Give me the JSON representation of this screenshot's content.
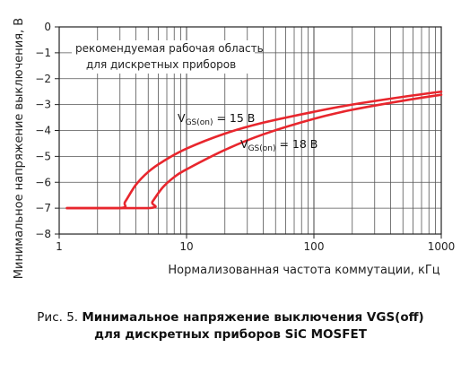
{
  "chart_data": {
    "type": "line",
    "x_scale": "log",
    "xlim": [
      1,
      1000
    ],
    "ylim": [
      -8,
      0
    ],
    "x_ticks": [
      {
        "value": 1,
        "label": "1"
      },
      {
        "value": 10,
        "label": "10"
      },
      {
        "value": 100,
        "label": "100"
      },
      {
        "value": 1000,
        "label": "1000"
      }
    ],
    "y_ticks": [
      {
        "value": 0,
        "label": "0"
      },
      {
        "value": -1,
        "label": "−1"
      },
      {
        "value": -2,
        "label": "−2"
      },
      {
        "value": -3,
        "label": "−3"
      },
      {
        "value": -4,
        "label": "−4"
      },
      {
        "value": -5,
        "label": "−5"
      },
      {
        "value": -6,
        "label": "−6"
      },
      {
        "value": -7,
        "label": "−7"
      },
      {
        "value": -8,
        "label": "−8"
      }
    ],
    "xlabel": "Нормализованная частота коммутации, кГц",
    "ylabel": "Минимальное напряжение выключения, В",
    "grid": true,
    "annotation": [
      "рекомендуемая рабочая область",
      "для дискретных приборов"
    ],
    "series": [
      {
        "name_main": "V",
        "name_sub": "GS(on)",
        "name_rest": " = 15 В",
        "color": "#e8262d",
        "points": [
          [
            1.15,
            -7.0
          ],
          [
            3.0,
            -7.0
          ],
          [
            3.3,
            -6.75
          ],
          [
            4.0,
            -6.1
          ],
          [
            5.0,
            -5.6
          ],
          [
            6.5,
            -5.2
          ],
          [
            10,
            -4.7
          ],
          [
            20,
            -4.12
          ],
          [
            40,
            -3.7
          ],
          [
            100,
            -3.28
          ],
          [
            200,
            -3.0
          ],
          [
            500,
            -2.7
          ],
          [
            1000,
            -2.5
          ]
        ]
      },
      {
        "name_main": "V",
        "name_sub": "GS(on)",
        "name_rest": " = 18 В",
        "color": "#e8262d",
        "points": [
          [
            1.15,
            -7.0
          ],
          [
            5.0,
            -7.0
          ],
          [
            5.4,
            -6.75
          ],
          [
            6.5,
            -6.2
          ],
          [
            8.0,
            -5.8
          ],
          [
            10,
            -5.5
          ],
          [
            20,
            -4.75
          ],
          [
            40,
            -4.15
          ],
          [
            100,
            -3.55
          ],
          [
            200,
            -3.2
          ],
          [
            500,
            -2.85
          ],
          [
            1000,
            -2.62
          ]
        ]
      }
    ]
  },
  "caption": {
    "prefix": "Рис. 5. ",
    "line1_bold": "Минимальное напряжение выключения VGS(off)",
    "line2_bold": "для дискретных приборов SiC MOSFET"
  }
}
